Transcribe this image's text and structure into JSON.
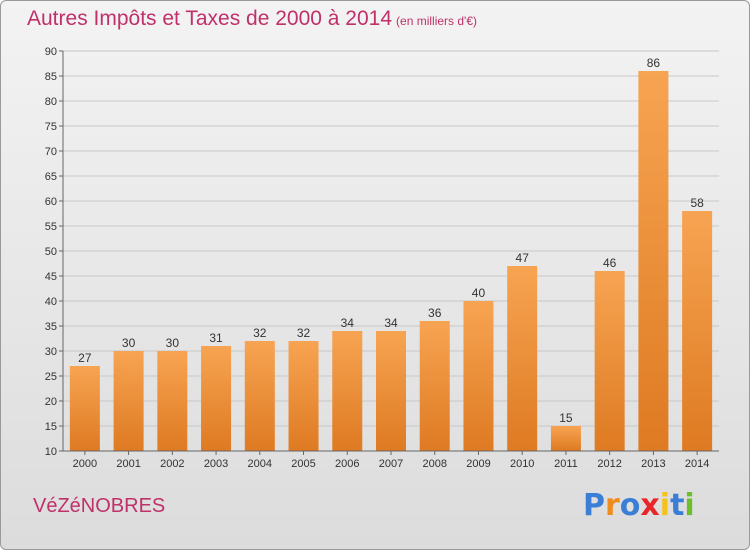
{
  "title": "Autres Impôts et Taxes de 2000 à 2014",
  "subtitle": "(en milliers d'€)",
  "commune": "VéZéNOBRES",
  "logo": {
    "text": "Proxiti",
    "letters": [
      {
        "ch": "P",
        "color": "#3a7fd5"
      },
      {
        "ch": "r",
        "color": "#f08c1e"
      },
      {
        "ch": "o",
        "color": "#3a7fd5"
      },
      {
        "ch": "x",
        "color": "#e8262a"
      },
      {
        "ch": "i",
        "color": "#f5c21a"
      },
      {
        "ch": "t",
        "color": "#3a7fd5"
      },
      {
        "ch": "i",
        "color": "#6bbf2a"
      }
    ]
  },
  "colors": {
    "bar_top": "#f7a452",
    "bar_bottom": "#de7a22",
    "title": "#c0306a",
    "grid": "#c8c8c8",
    "axis_text": "#333333"
  },
  "chart_data": {
    "type": "bar",
    "title": "Autres Impôts et Taxes de 2000 à 2014",
    "subtitle": "(en milliers d'€)",
    "xlabel": "",
    "ylabel": "",
    "categories": [
      "2000",
      "2001",
      "2002",
      "2003",
      "2004",
      "2005",
      "2006",
      "2007",
      "2008",
      "2009",
      "2010",
      "2011",
      "2012",
      "2013",
      "2014"
    ],
    "values": [
      27,
      30,
      30,
      31,
      32,
      32,
      34,
      34,
      36,
      40,
      47,
      15,
      46,
      86,
      58
    ],
    "ylim": [
      10,
      90
    ],
    "yticks": [
      10,
      15,
      20,
      25,
      30,
      35,
      40,
      45,
      50,
      55,
      60,
      65,
      70,
      75,
      80,
      85,
      90
    ],
    "grid": true,
    "legend": "none"
  }
}
